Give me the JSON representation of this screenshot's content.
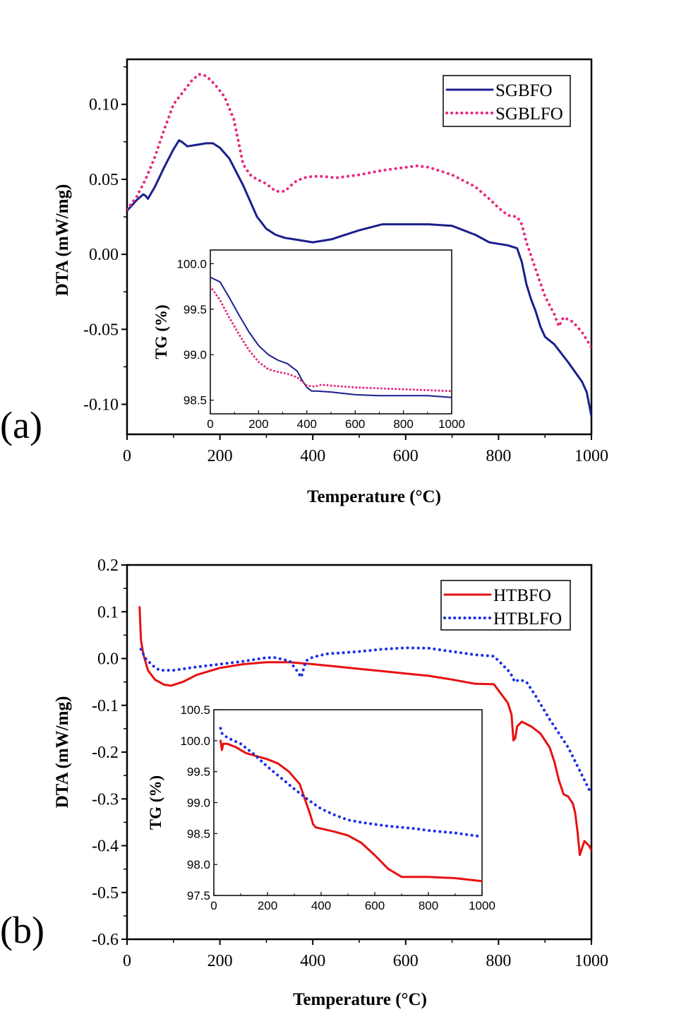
{
  "chart_data": [
    {
      "panel_label": "(a)",
      "type": "line",
      "xlabel": "Temperature (°C)",
      "ylabel": "DTA (mW/mg)",
      "xlim": [
        0,
        1000
      ],
      "ylim": [
        -0.12,
        0.13
      ],
      "xticks": [
        0,
        200,
        400,
        600,
        800,
        1000
      ],
      "yticks": [
        -0.1,
        -0.05,
        0.0,
        0.05,
        0.1
      ],
      "ytick_labels": [
        "-0.10",
        "-0.05",
        "0.00",
        "0.05",
        "0.10"
      ],
      "legend_position": "top-right",
      "series": [
        {
          "name": "SGBFO",
          "color": "#1a1f8c",
          "style": "solid",
          "x": [
            0,
            20,
            35,
            40,
            45,
            60,
            80,
            100,
            112,
            118,
            130,
            150,
            170,
            185,
            200,
            220,
            250,
            280,
            300,
            320,
            340,
            360,
            380,
            400,
            420,
            440,
            460,
            500,
            550,
            600,
            650,
            700,
            750,
            780,
            800,
            820,
            840,
            850,
            860,
            870,
            880,
            890,
            900,
            920,
            950,
            980,
            990,
            1000
          ],
          "y": [
            0.029,
            0.036,
            0.04,
            0.039,
            0.037,
            0.045,
            0.058,
            0.07,
            0.076,
            0.075,
            0.072,
            0.073,
            0.074,
            0.074,
            0.071,
            0.064,
            0.046,
            0.025,
            0.017,
            0.013,
            0.011,
            0.01,
            0.009,
            0.008,
            0.009,
            0.01,
            0.012,
            0.016,
            0.02,
            0.02,
            0.02,
            0.019,
            0.013,
            0.008,
            0.007,
            0.006,
            0.004,
            -0.005,
            -0.02,
            -0.03,
            -0.038,
            -0.048,
            -0.055,
            -0.06,
            -0.072,
            -0.085,
            -0.092,
            -0.108
          ]
        },
        {
          "name": "SGBLFO",
          "color": "#e8267e",
          "style": "dotted",
          "x": [
            0,
            20,
            40,
            60,
            80,
            100,
            120,
            140,
            155,
            170,
            190,
            210,
            230,
            250,
            265,
            280,
            300,
            320,
            340,
            360,
            380,
            400,
            420,
            450,
            500,
            550,
            600,
            625,
            650,
            700,
            750,
            780,
            790,
            800,
            820,
            840,
            850,
            860,
            880,
            900,
            920,
            930,
            940,
            960,
            980,
            1000
          ],
          "y": [
            0.03,
            0.038,
            0.05,
            0.065,
            0.083,
            0.1,
            0.108,
            0.116,
            0.12,
            0.119,
            0.113,
            0.105,
            0.09,
            0.06,
            0.053,
            0.05,
            0.047,
            0.042,
            0.042,
            0.048,
            0.051,
            0.052,
            0.052,
            0.051,
            0.053,
            0.056,
            0.058,
            0.059,
            0.058,
            0.053,
            0.045,
            0.037,
            0.034,
            0.031,
            0.026,
            0.025,
            0.02,
            0.008,
            -0.01,
            -0.028,
            -0.04,
            -0.048,
            -0.042,
            -0.045,
            -0.052,
            -0.062
          ]
        }
      ],
      "inset": {
        "xlabel": "",
        "ylabel": "TG (%)",
        "xlim": [
          0,
          1000
        ],
        "ylim": [
          98.35,
          100.15
        ],
        "xticks": [
          0,
          200,
          400,
          600,
          800,
          1000
        ],
        "yticks": [
          98.5,
          99.0,
          99.5,
          100.0
        ],
        "ytick_labels": [
          "98.5",
          "99.0",
          "99.5",
          "100.0"
        ],
        "series": [
          {
            "name": "SGBFO",
            "color": "#1a1f8c",
            "style": "solid",
            "x": [
              0,
              40,
              80,
              120,
              160,
              200,
              240,
              280,
              320,
              360,
              380,
              400,
              420,
              440,
              500,
              600,
              700,
              800,
              900,
              1000
            ],
            "y": [
              99.85,
              99.8,
              99.62,
              99.43,
              99.25,
              99.1,
              99.0,
              98.94,
              98.9,
              98.82,
              98.72,
              98.64,
              98.6,
              98.6,
              98.59,
              98.56,
              98.55,
              98.55,
              98.55,
              98.53
            ]
          },
          {
            "name": "SGBLFO",
            "color": "#e8267e",
            "style": "dotted",
            "x": [
              0,
              40,
              80,
              120,
              160,
              200,
              240,
              280,
              320,
              360,
              400,
              430,
              460,
              500,
              600,
              700,
              800,
              900,
              1000
            ],
            "y": [
              99.75,
              99.6,
              99.4,
              99.22,
              99.05,
              98.92,
              98.84,
              98.81,
              98.79,
              98.75,
              98.66,
              98.65,
              98.67,
              98.66,
              98.64,
              98.63,
              98.62,
              98.61,
              98.6
            ]
          }
        ]
      }
    },
    {
      "panel_label": "(b)",
      "type": "line",
      "xlabel": "Temperature (°C)",
      "ylabel": "DTA (mW/mg)",
      "xlim": [
        0,
        1000
      ],
      "ylim": [
        -0.6,
        0.2
      ],
      "xticks": [
        0,
        200,
        400,
        600,
        800,
        1000
      ],
      "yticks": [
        -0.6,
        -0.5,
        -0.4,
        -0.3,
        -0.2,
        -0.1,
        0.0,
        0.1,
        0.2
      ],
      "ytick_labels": [
        "-0.6",
        "-0.5",
        "-0.4",
        "-0.3",
        "-0.2",
        "-0.1",
        "0.0",
        "0.1",
        "0.2"
      ],
      "legend_position": "top-right",
      "series": [
        {
          "name": "HTBFO",
          "color": "#e81010",
          "style": "solid",
          "x": [
            27,
            30,
            35,
            45,
            60,
            80,
            95,
            120,
            150,
            200,
            250,
            300,
            350,
            400,
            450,
            500,
            550,
            600,
            650,
            700,
            750,
            790,
            805,
            820,
            828,
            832,
            836,
            840,
            850,
            870,
            890,
            910,
            920,
            930,
            940,
            950,
            960,
            965,
            970,
            975,
            985,
            995,
            1000
          ],
          "y": [
            0.11,
            0.04,
            0.01,
            -0.025,
            -0.045,
            -0.056,
            -0.058,
            -0.05,
            -0.035,
            -0.02,
            -0.012,
            -0.008,
            -0.008,
            -0.012,
            -0.017,
            -0.022,
            -0.027,
            -0.032,
            -0.037,
            -0.045,
            -0.054,
            -0.055,
            -0.075,
            -0.095,
            -0.12,
            -0.175,
            -0.17,
            -0.145,
            -0.135,
            -0.145,
            -0.16,
            -0.19,
            -0.22,
            -0.26,
            -0.29,
            -0.295,
            -0.31,
            -0.33,
            -0.37,
            -0.42,
            -0.39,
            -0.4,
            -0.41
          ]
        },
        {
          "name": "HTBLFO",
          "color": "#1a2ee8",
          "style": "dotted",
          "x": [
            30,
            40,
            55,
            70,
            100,
            150,
            200,
            250,
            300,
            320,
            340,
            350,
            365,
            375,
            385,
            400,
            430,
            500,
            550,
            600,
            650,
            700,
            750,
            790,
            810,
            825,
            835,
            845,
            860,
            880,
            910,
            950,
            1000
          ],
          "y": [
            0.02,
            0.0,
            -0.015,
            -0.025,
            -0.025,
            -0.018,
            -0.012,
            -0.006,
            0.002,
            0.002,
            -0.003,
            -0.005,
            -0.025,
            -0.04,
            -0.005,
            0.003,
            0.01,
            0.015,
            0.02,
            0.023,
            0.022,
            0.015,
            0.008,
            0.005,
            -0.015,
            -0.03,
            -0.05,
            -0.045,
            -0.05,
            -0.08,
            -0.13,
            -0.19,
            -0.29
          ]
        }
      ],
      "inset": {
        "xlabel": "",
        "ylabel": "TG (%)",
        "xlim": [
          0,
          1000
        ],
        "ylim": [
          97.5,
          100.5
        ],
        "xticks": [
          0,
          200,
          400,
          600,
          800,
          1000
        ],
        "yticks": [
          97.5,
          98.0,
          98.5,
          99.0,
          99.5,
          100.0,
          100.5
        ],
        "ytick_labels": [
          "97.5",
          "98.0",
          "98.5",
          "99.0",
          "99.5",
          "100.0",
          "100.5"
        ],
        "series": [
          {
            "name": "HTBFO",
            "color": "#e81010",
            "style": "solid",
            "x": [
              25,
              30,
              35,
              40,
              50,
              80,
              120,
              160,
              200,
              240,
              280,
              320,
              340,
              360,
              370,
              380,
              400,
              450,
              500,
              550,
              600,
              650,
              700,
              750,
              800,
              900,
              1000
            ],
            "y": [
              100.0,
              99.85,
              99.95,
              99.95,
              99.95,
              99.9,
              99.8,
              99.75,
              99.7,
              99.63,
              99.5,
              99.3,
              99.05,
              98.8,
              98.65,
              98.6,
              98.58,
              98.53,
              98.47,
              98.35,
              98.15,
              97.93,
              97.8,
              97.8,
              97.8,
              97.78,
              97.73
            ]
          },
          {
            "name": "HTBLFO",
            "color": "#1a2ee8",
            "style": "dotted",
            "x": [
              25,
              30,
              50,
              100,
              150,
              200,
              250,
              300,
              350,
              400,
              450,
              500,
              550,
              600,
              650,
              700,
              750,
              800,
              900,
              1000
            ],
            "y": [
              100.2,
              100.12,
              100.05,
              99.95,
              99.78,
              99.58,
              99.4,
              99.22,
              99.05,
              98.9,
              98.8,
              98.72,
              98.68,
              98.65,
              98.62,
              98.6,
              98.58,
              98.55,
              98.51,
              98.45
            ]
          }
        ]
      }
    }
  ]
}
